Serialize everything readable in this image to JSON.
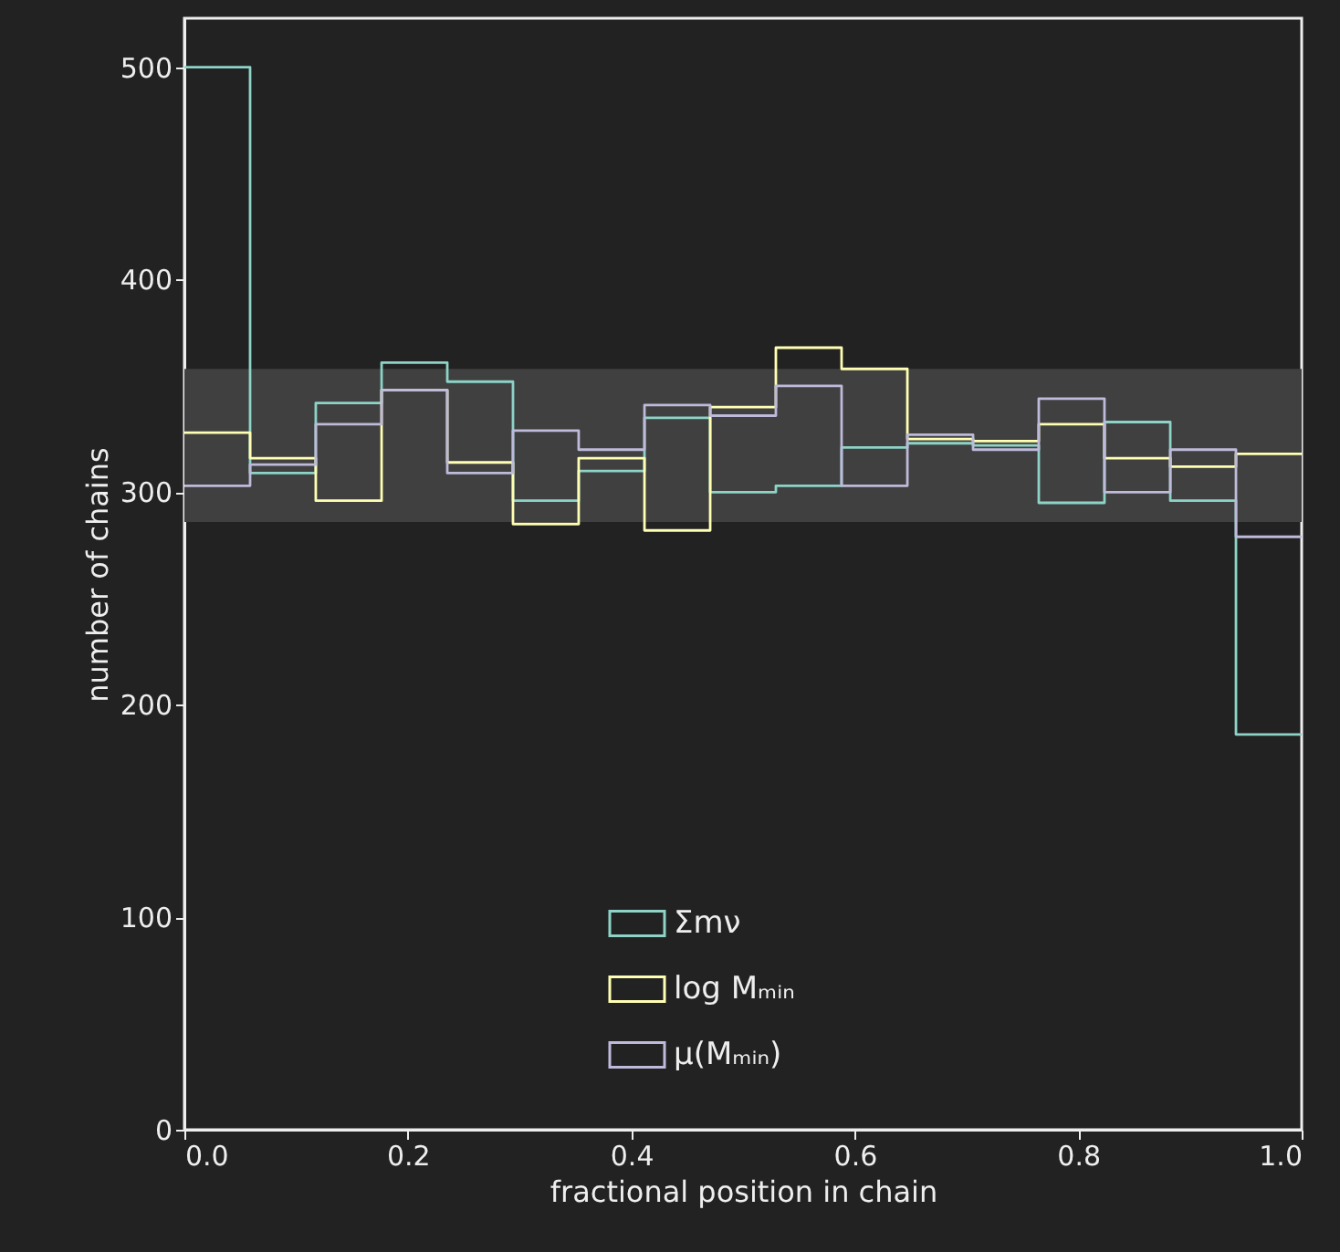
{
  "chart_data": {
    "type": "histogram",
    "xlabel": "fractional position in chain",
    "ylabel": "number of chains",
    "bins": [
      0,
      0.0588,
      0.1176,
      0.1765,
      0.2353,
      0.2941,
      0.3529,
      0.4118,
      0.4706,
      0.5294,
      0.5882,
      0.6471,
      0.7059,
      0.7647,
      0.8235,
      0.8824,
      0.9412,
      1
    ],
    "series": [
      {
        "name": "Σmν",
        "color": "#8dd3c7",
        "values": [
          500,
          309,
          342,
          361,
          352,
          296,
          310,
          335,
          300,
          303,
          321,
          323,
          322,
          295,
          333,
          296,
          186
        ]
      },
      {
        "name": "log Mₘᵢₙ",
        "color": "#ffffb3",
        "values": [
          328,
          316,
          296,
          348,
          314,
          285,
          316,
          282,
          340,
          368,
          358,
          325,
          324,
          332,
          316,
          312,
          318
        ]
      },
      {
        "name": "μ(Mₘᵢₙ)",
        "color": "#bebada",
        "values": [
          303,
          313,
          332,
          348,
          309,
          329,
          320,
          341,
          336,
          350,
          303,
          327,
          320,
          344,
          300,
          320,
          279
        ]
      }
    ],
    "bands": [
      {
        "axis": "y",
        "from": 286,
        "to": 358,
        "color": "#404040"
      }
    ],
    "xlim": [
      0,
      1
    ],
    "ylim": [
      0,
      523
    ],
    "xticks": [
      {
        "value": 0,
        "label": "0.0"
      },
      0.2,
      0.4,
      0.6,
      0.8,
      {
        "value": 1,
        "label": "1.0"
      }
    ],
    "yticks": [
      0,
      100,
      200,
      300,
      400,
      500
    ],
    "legend": "bottom",
    "grid": false
  }
}
